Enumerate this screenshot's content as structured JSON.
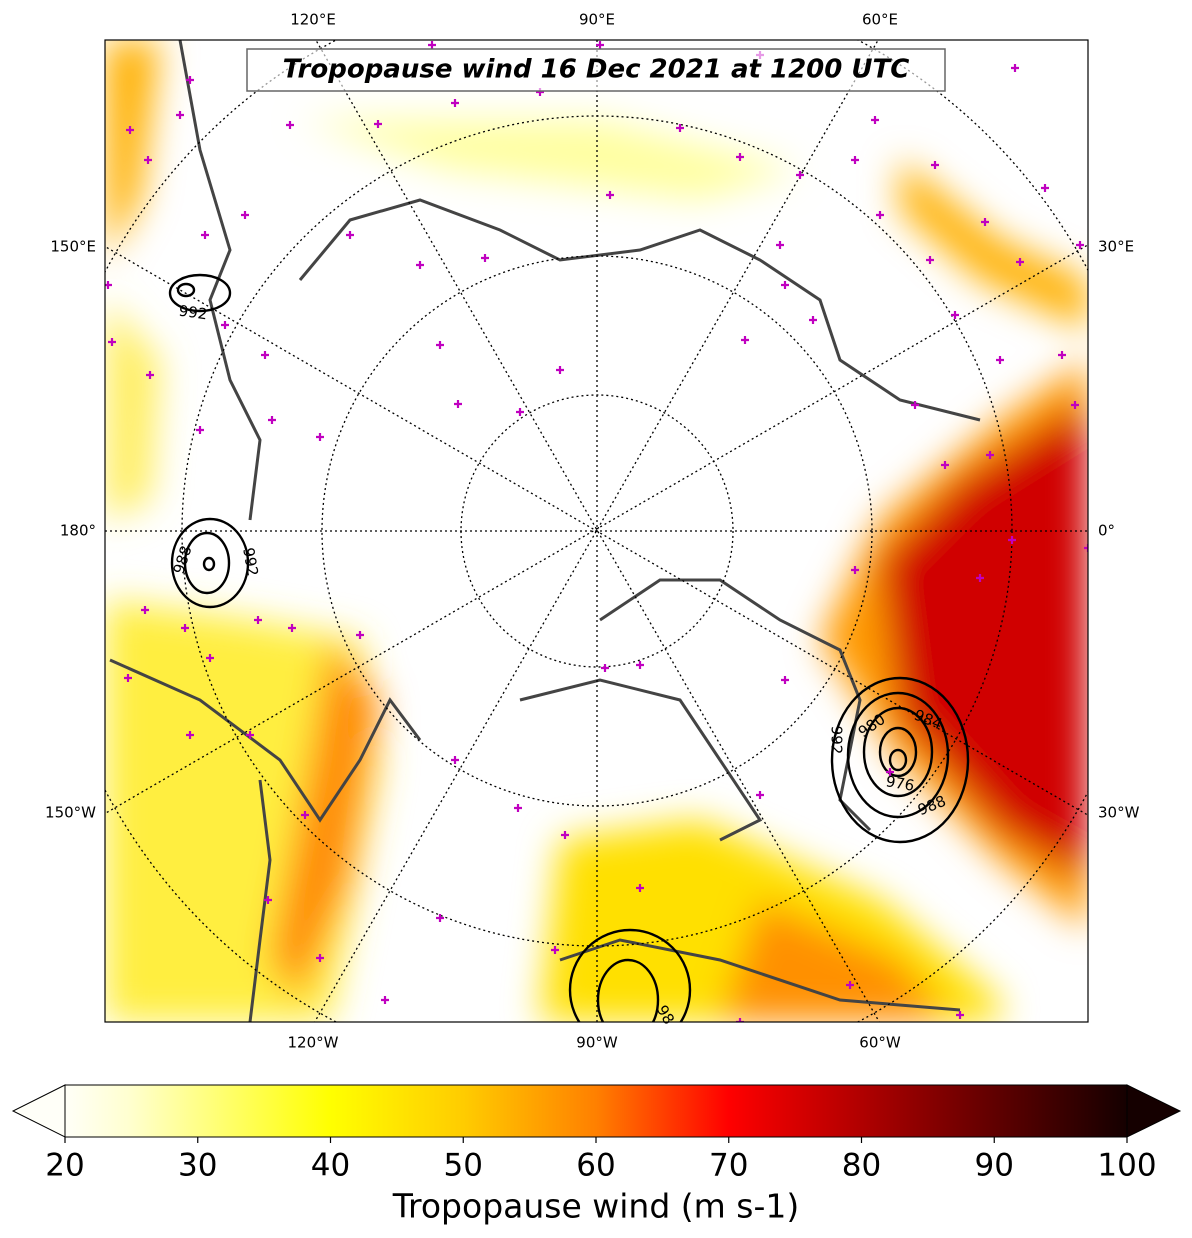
{
  "title": "Tropopause wind 16 Dec 2021 at 1200 UTC",
  "longitude_labels": {
    "top": [
      "120°E",
      "90°E",
      "60°E"
    ],
    "left": [
      "150°E",
      "180°",
      "150°W"
    ],
    "right": [
      "30°E",
      "0°",
      "30°W"
    ],
    "bottom": [
      "120°W",
      "90°W",
      "60°W"
    ]
  },
  "contour_labels": [
    "992",
    "988",
    "992",
    "984",
    "980",
    "976",
    "988",
    "992",
    "98"
  ],
  "colorbar": {
    "label": "Tropopause wind (m s-1)",
    "lim": [
      20,
      100
    ],
    "ticks": [
      20,
      30,
      40,
      50,
      60,
      70,
      80,
      90,
      100
    ]
  }
}
